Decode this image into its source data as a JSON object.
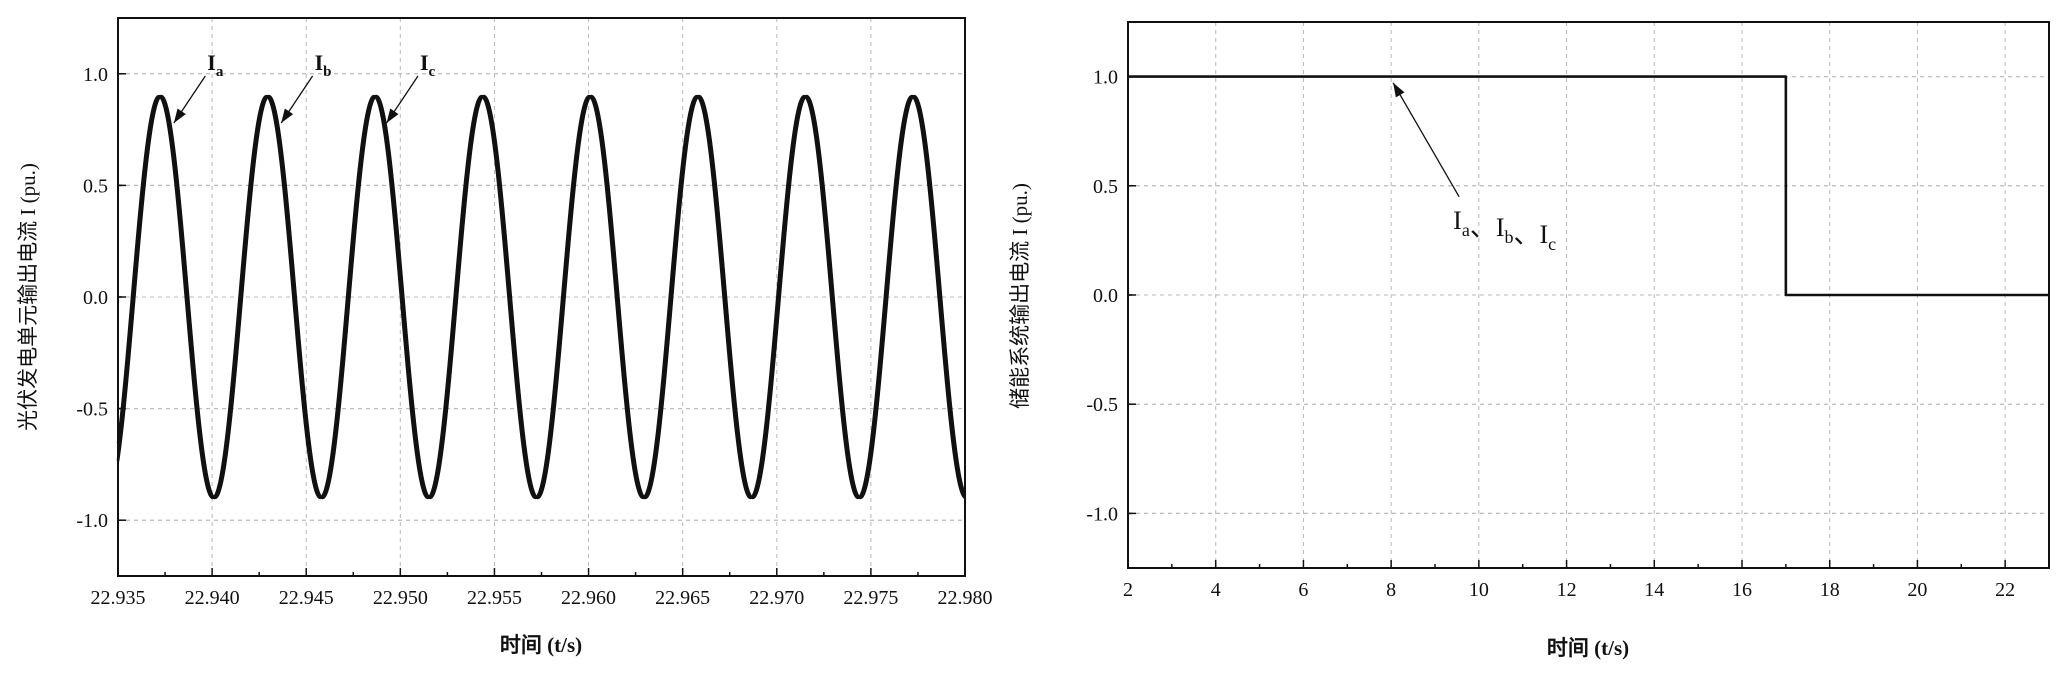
{
  "chart_data": [
    {
      "type": "line",
      "title": "",
      "xlabel": "时间 (t/s)",
      "ylabel": "光伏发电单元输出电流 I (pu.)",
      "xlim": [
        22.935,
        22.98
      ],
      "ylim": [
        -1.25,
        1.25
      ],
      "x_ticks": [
        "22.935",
        "22.940",
        "22.945",
        "22.950",
        "22.955",
        "22.960",
        "22.965",
        "22.970",
        "22.975",
        "22.980"
      ],
      "y_ticks": [
        "-1.0",
        "-0.5",
        "0.0",
        "0.5",
        "1.0"
      ],
      "grid": true,
      "waveform": {
        "amplitude": 0.9,
        "frequency_hz": 175,
        "phase_shift_deg": 120
      },
      "series": [
        {
          "name": "Ia",
          "peak_x": 22.9373
        },
        {
          "name": "Ib",
          "peak_x": 22.943
        },
        {
          "name": "Ic",
          "peak_x": 22.9486
        }
      ],
      "annotations": [
        {
          "base": "I",
          "sub": "a",
          "series": "Ia"
        },
        {
          "base": "I",
          "sub": "b",
          "series": "Ib"
        },
        {
          "base": "I",
          "sub": "c",
          "series": "Ic"
        }
      ]
    },
    {
      "type": "line",
      "title": "",
      "xlabel": "时间 (t/s)",
      "ylabel": "储能系统输出电流 I (pu.)",
      "xlim": [
        2,
        23
      ],
      "ylim": [
        -1.25,
        1.25
      ],
      "x_ticks": [
        "2",
        "4",
        "6",
        "8",
        "10",
        "12",
        "14",
        "16",
        "18",
        "20",
        "22"
      ],
      "y_ticks": [
        "-1.0",
        "-0.5",
        "0.0",
        "0.5",
        "1.0"
      ],
      "grid": true,
      "series": [
        {
          "name": "Ia、Ib、Ic",
          "x": [
            2,
            17,
            17,
            23
          ],
          "y": [
            1.0,
            1.0,
            0.0,
            0.0
          ]
        }
      ],
      "annotation": {
        "parts": [
          {
            "base": "I",
            "sub": "a"
          },
          {
            "base": "、I",
            "sub": "b"
          },
          {
            "base": "、I",
            "sub": "c"
          }
        ],
        "points_to": [
          8.0,
          0.99
        ]
      }
    }
  ]
}
